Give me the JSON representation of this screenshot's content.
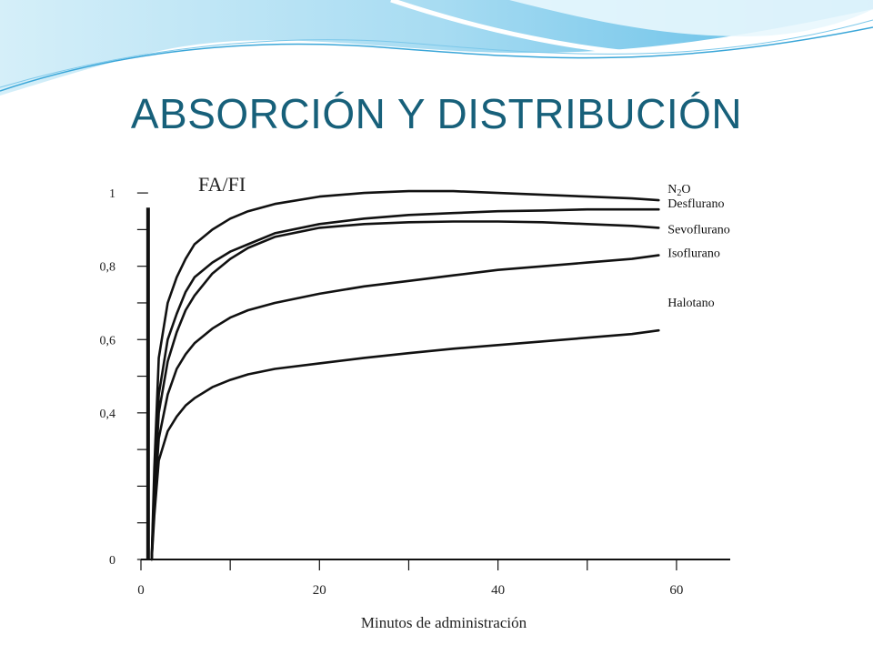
{
  "slide": {
    "title": "ABSORCIÓN Y DISTRIBUCIÓN",
    "colors": {
      "title": "#17607a",
      "wave_dark": "#3aa6d8",
      "wave_light": "#bfe6f5"
    }
  },
  "chart_data": {
    "type": "line",
    "title": "",
    "ylabel": "FA/FI",
    "xlabel": "Minutos de administración",
    "xlim": [
      0,
      65
    ],
    "ylim": [
      0,
      1.03
    ],
    "x_ticks": [
      0,
      20,
      40,
      60
    ],
    "x_tick_labels": [
      "0",
      "20",
      "40",
      "60"
    ],
    "y_ticks": [
      0,
      0.4,
      0.6,
      0.8,
      1
    ],
    "y_tick_labels": [
      "0",
      "0,4",
      "0,6",
      "0,8",
      "1"
    ],
    "grid": false,
    "legend": "inline labels at right end of each line",
    "series": [
      {
        "name": "N2O",
        "label_main": "N",
        "label_sub": "2",
        "label_tail": "O",
        "x": [
          1.5,
          2,
          3,
          4,
          5,
          6,
          8,
          10,
          12,
          15,
          20,
          25,
          30,
          35,
          40,
          45,
          50,
          55,
          58
        ],
        "y": [
          0.25,
          0.55,
          0.7,
          0.77,
          0.82,
          0.86,
          0.9,
          0.93,
          0.95,
          0.97,
          0.99,
          1.0,
          1.005,
          1.005,
          1.0,
          0.995,
          0.99,
          0.985,
          0.98
        ]
      },
      {
        "name": "Desflurano",
        "x": [
          1.5,
          2,
          3,
          4,
          5,
          6,
          8,
          10,
          12,
          15,
          20,
          25,
          30,
          35,
          40,
          45,
          50,
          55,
          58
        ],
        "y": [
          0.2,
          0.45,
          0.6,
          0.67,
          0.73,
          0.77,
          0.81,
          0.84,
          0.86,
          0.89,
          0.915,
          0.93,
          0.94,
          0.945,
          0.95,
          0.952,
          0.955,
          0.955,
          0.955
        ]
      },
      {
        "name": "Sevoflurano",
        "x": [
          1.5,
          2,
          3,
          4,
          5,
          6,
          8,
          10,
          12,
          15,
          20,
          25,
          30,
          35,
          40,
          45,
          50,
          55,
          58
        ],
        "y": [
          0.18,
          0.4,
          0.54,
          0.62,
          0.68,
          0.72,
          0.78,
          0.82,
          0.85,
          0.88,
          0.905,
          0.915,
          0.92,
          0.922,
          0.922,
          0.92,
          0.915,
          0.91,
          0.905
        ]
      },
      {
        "name": "Isoflurano",
        "x": [
          1.5,
          2,
          3,
          4,
          5,
          6,
          8,
          10,
          12,
          15,
          20,
          25,
          30,
          35,
          40,
          45,
          50,
          55,
          58
        ],
        "y": [
          0.15,
          0.33,
          0.45,
          0.52,
          0.56,
          0.59,
          0.63,
          0.66,
          0.68,
          0.7,
          0.725,
          0.745,
          0.76,
          0.775,
          0.79,
          0.8,
          0.81,
          0.82,
          0.83
        ]
      },
      {
        "name": "Halotano",
        "x": [
          1.5,
          2,
          3,
          4,
          5,
          6,
          8,
          10,
          12,
          15,
          20,
          25,
          30,
          35,
          40,
          45,
          50,
          55,
          58
        ],
        "y": [
          0.12,
          0.27,
          0.35,
          0.39,
          0.42,
          0.44,
          0.47,
          0.49,
          0.505,
          0.52,
          0.535,
          0.55,
          0.563,
          0.575,
          0.585,
          0.595,
          0.605,
          0.615,
          0.625
        ]
      }
    ]
  }
}
